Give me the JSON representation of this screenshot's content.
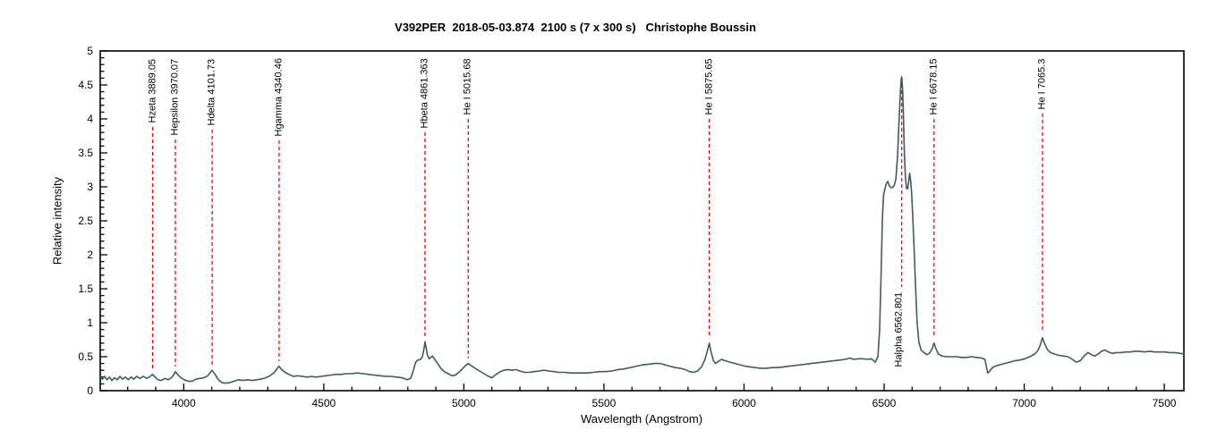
{
  "title": "V392PER  2018-05-03.874  2100 s (7 x 300 s)   Christophe Boussin",
  "colors": {
    "spectrum_line": "#3e5d5b",
    "marker_dash": "#ff0000",
    "axis": "#000000",
    "background": "#ffffff"
  },
  "chart_data": {
    "type": "line",
    "title": "V392PER  2018-05-03.874  2100 s (7 x 300 s)   Christophe Boussin",
    "xlabel": "Wavelength (Angstrom)",
    "ylabel": "Relative intensity",
    "xlim": [
      3702,
      7570
    ],
    "ylim": [
      0,
      5
    ],
    "x_major_ticks": [
      4000,
      4500,
      5000,
      5500,
      6000,
      6500,
      7000,
      7500
    ],
    "x_minor_step": 100,
    "y_major_ticks": [
      0,
      0.5,
      1,
      1.5,
      2,
      2.5,
      3,
      3.5,
      4,
      4.5,
      5
    ],
    "y_minor_step": 0.1,
    "grid": false,
    "legend": "none",
    "series": [
      {
        "name": "spectrum",
        "points": [
          [
            3702,
            0.2
          ],
          [
            3710,
            0.17
          ],
          [
            3718,
            0.21
          ],
          [
            3726,
            0.16
          ],
          [
            3735,
            0.2
          ],
          [
            3744,
            0.15
          ],
          [
            3753,
            0.19
          ],
          [
            3763,
            0.16
          ],
          [
            3772,
            0.21
          ],
          [
            3782,
            0.17
          ],
          [
            3792,
            0.2
          ],
          [
            3802,
            0.16
          ],
          [
            3812,
            0.2
          ],
          [
            3822,
            0.17
          ],
          [
            3832,
            0.21
          ],
          [
            3844,
            0.18
          ],
          [
            3856,
            0.21
          ],
          [
            3868,
            0.18
          ],
          [
            3880,
            0.21
          ],
          [
            3889,
            0.24
          ],
          [
            3898,
            0.2
          ],
          [
            3908,
            0.16
          ],
          [
            3920,
            0.15
          ],
          [
            3932,
            0.18
          ],
          [
            3944,
            0.16
          ],
          [
            3956,
            0.19
          ],
          [
            3964,
            0.23
          ],
          [
            3970,
            0.28
          ],
          [
            3978,
            0.24
          ],
          [
            3990,
            0.19
          ],
          [
            4002,
            0.16
          ],
          [
            4016,
            0.14
          ],
          [
            4030,
            0.14
          ],
          [
            4044,
            0.17
          ],
          [
            4058,
            0.18
          ],
          [
            4072,
            0.19
          ],
          [
            4086,
            0.22
          ],
          [
            4101,
            0.3
          ],
          [
            4112,
            0.24
          ],
          [
            4124,
            0.16
          ],
          [
            4136,
            0.12
          ],
          [
            4150,
            0.11
          ],
          [
            4165,
            0.12
          ],
          [
            4180,
            0.14
          ],
          [
            4196,
            0.16
          ],
          [
            4212,
            0.15
          ],
          [
            4228,
            0.16
          ],
          [
            4244,
            0.15
          ],
          [
            4260,
            0.16
          ],
          [
            4276,
            0.17
          ],
          [
            4292,
            0.19
          ],
          [
            4308,
            0.22
          ],
          [
            4324,
            0.27
          ],
          [
            4340,
            0.36
          ],
          [
            4350,
            0.31
          ],
          [
            4362,
            0.27
          ],
          [
            4376,
            0.24
          ],
          [
            4392,
            0.21
          ],
          [
            4408,
            0.22
          ],
          [
            4424,
            0.21
          ],
          [
            4440,
            0.2
          ],
          [
            4456,
            0.21
          ],
          [
            4472,
            0.2
          ],
          [
            4490,
            0.21
          ],
          [
            4508,
            0.22
          ],
          [
            4526,
            0.23
          ],
          [
            4544,
            0.24
          ],
          [
            4562,
            0.24
          ],
          [
            4580,
            0.25
          ],
          [
            4600,
            0.25
          ],
          [
            4620,
            0.26
          ],
          [
            4640,
            0.25
          ],
          [
            4660,
            0.24
          ],
          [
            4680,
            0.23
          ],
          [
            4700,
            0.22
          ],
          [
            4720,
            0.21
          ],
          [
            4740,
            0.21
          ],
          [
            4760,
            0.2
          ],
          [
            4780,
            0.19
          ],
          [
            4798,
            0.16
          ],
          [
            4810,
            0.18
          ],
          [
            4820,
            0.3
          ],
          [
            4828,
            0.42
          ],
          [
            4836,
            0.45
          ],
          [
            4845,
            0.46
          ],
          [
            4852,
            0.5
          ],
          [
            4858,
            0.62
          ],
          [
            4861,
            0.72
          ],
          [
            4865,
            0.64
          ],
          [
            4870,
            0.52
          ],
          [
            4876,
            0.47
          ],
          [
            4882,
            0.49
          ],
          [
            4888,
            0.51
          ],
          [
            4896,
            0.46
          ],
          [
            4906,
            0.4
          ],
          [
            4918,
            0.33
          ],
          [
            4930,
            0.28
          ],
          [
            4944,
            0.25
          ],
          [
            4958,
            0.22
          ],
          [
            4970,
            0.23
          ],
          [
            4982,
            0.27
          ],
          [
            4994,
            0.32
          ],
          [
            5006,
            0.37
          ],
          [
            5015,
            0.4
          ],
          [
            5026,
            0.37
          ],
          [
            5040,
            0.33
          ],
          [
            5056,
            0.29
          ],
          [
            5072,
            0.25
          ],
          [
            5088,
            0.21
          ],
          [
            5100,
            0.19
          ],
          [
            5112,
            0.23
          ],
          [
            5126,
            0.27
          ],
          [
            5142,
            0.3
          ],
          [
            5158,
            0.31
          ],
          [
            5172,
            0.3
          ],
          [
            5186,
            0.31
          ],
          [
            5200,
            0.29
          ],
          [
            5216,
            0.27
          ],
          [
            5232,
            0.27
          ],
          [
            5250,
            0.28
          ],
          [
            5268,
            0.29
          ],
          [
            5286,
            0.3
          ],
          [
            5304,
            0.29
          ],
          [
            5322,
            0.28
          ],
          [
            5340,
            0.27
          ],
          [
            5360,
            0.27
          ],
          [
            5380,
            0.26
          ],
          [
            5400,
            0.26
          ],
          [
            5420,
            0.26
          ],
          [
            5440,
            0.26
          ],
          [
            5462,
            0.27
          ],
          [
            5484,
            0.28
          ],
          [
            5506,
            0.28
          ],
          [
            5528,
            0.29
          ],
          [
            5550,
            0.31
          ],
          [
            5572,
            0.32
          ],
          [
            5594,
            0.34
          ],
          [
            5616,
            0.36
          ],
          [
            5638,
            0.38
          ],
          [
            5660,
            0.39
          ],
          [
            5680,
            0.4
          ],
          [
            5700,
            0.4
          ],
          [
            5718,
            0.38
          ],
          [
            5736,
            0.36
          ],
          [
            5754,
            0.34
          ],
          [
            5772,
            0.33
          ],
          [
            5790,
            0.31
          ],
          [
            5806,
            0.28
          ],
          [
            5820,
            0.27
          ],
          [
            5834,
            0.29
          ],
          [
            5848,
            0.35
          ],
          [
            5860,
            0.45
          ],
          [
            5869,
            0.58
          ],
          [
            5876,
            0.7
          ],
          [
            5882,
            0.58
          ],
          [
            5890,
            0.45
          ],
          [
            5898,
            0.4
          ],
          [
            5908,
            0.43
          ],
          [
            5920,
            0.46
          ],
          [
            5934,
            0.44
          ],
          [
            5950,
            0.42
          ],
          [
            5968,
            0.4
          ],
          [
            5986,
            0.38
          ],
          [
            6004,
            0.36
          ],
          [
            6022,
            0.35
          ],
          [
            6040,
            0.34
          ],
          [
            6060,
            0.33
          ],
          [
            6080,
            0.33
          ],
          [
            6100,
            0.34
          ],
          [
            6120,
            0.34
          ],
          [
            6140,
            0.35
          ],
          [
            6160,
            0.36
          ],
          [
            6180,
            0.37
          ],
          [
            6200,
            0.38
          ],
          [
            6220,
            0.39
          ],
          [
            6240,
            0.4
          ],
          [
            6260,
            0.41
          ],
          [
            6280,
            0.42
          ],
          [
            6300,
            0.43
          ],
          [
            6320,
            0.44
          ],
          [
            6340,
            0.45
          ],
          [
            6360,
            0.46
          ],
          [
            6378,
            0.48
          ],
          [
            6392,
            0.46
          ],
          [
            6408,
            0.47
          ],
          [
            6424,
            0.47
          ],
          [
            6440,
            0.46
          ],
          [
            6455,
            0.47
          ],
          [
            6468,
            0.42
          ],
          [
            6478,
            0.5
          ],
          [
            6484,
            0.9
          ],
          [
            6489,
            1.7
          ],
          [
            6494,
            2.55
          ],
          [
            6498,
            2.88
          ],
          [
            6503,
            2.97
          ],
          [
            6508,
            3.05
          ],
          [
            6513,
            3.08
          ],
          [
            6518,
            3.02
          ],
          [
            6524,
            2.99
          ],
          [
            6530,
            2.99
          ],
          [
            6536,
            3.02
          ],
          [
            6542,
            3.12
          ],
          [
            6548,
            3.45
          ],
          [
            6553,
            3.95
          ],
          [
            6558,
            4.4
          ],
          [
            6561,
            4.58
          ],
          [
            6563,
            4.62
          ],
          [
            6566,
            4.42
          ],
          [
            6569,
            4.05
          ],
          [
            6572,
            3.55
          ],
          [
            6576,
            3.15
          ],
          [
            6580,
            2.98
          ],
          [
            6584,
            2.97
          ],
          [
            6588,
            3.1
          ],
          [
            6591,
            3.2
          ],
          [
            6594,
            3.12
          ],
          [
            6598,
            2.92
          ],
          [
            6602,
            2.6
          ],
          [
            6607,
            2.1
          ],
          [
            6612,
            1.55
          ],
          [
            6618,
            1.0
          ],
          [
            6624,
            0.72
          ],
          [
            6632,
            0.6
          ],
          [
            6642,
            0.56
          ],
          [
            6652,
            0.53
          ],
          [
            6662,
            0.55
          ],
          [
            6671,
            0.61
          ],
          [
            6678,
            0.7
          ],
          [
            6685,
            0.62
          ],
          [
            6694,
            0.54
          ],
          [
            6706,
            0.51
          ],
          [
            6722,
            0.5
          ],
          [
            6740,
            0.5
          ],
          [
            6758,
            0.5
          ],
          [
            6776,
            0.49
          ],
          [
            6794,
            0.49
          ],
          [
            6812,
            0.5
          ],
          [
            6830,
            0.49
          ],
          [
            6848,
            0.48
          ],
          [
            6860,
            0.46
          ],
          [
            6866,
            0.33
          ],
          [
            6870,
            0.26
          ],
          [
            6876,
            0.28
          ],
          [
            6884,
            0.33
          ],
          [
            6896,
            0.36
          ],
          [
            6912,
            0.38
          ],
          [
            6930,
            0.4
          ],
          [
            6948,
            0.42
          ],
          [
            6966,
            0.44
          ],
          [
            6984,
            0.45
          ],
          [
            7002,
            0.47
          ],
          [
            7020,
            0.5
          ],
          [
            7038,
            0.54
          ],
          [
            7050,
            0.6
          ],
          [
            7058,
            0.68
          ],
          [
            7065,
            0.78
          ],
          [
            7072,
            0.7
          ],
          [
            7082,
            0.61
          ],
          [
            7094,
            0.56
          ],
          [
            7108,
            0.54
          ],
          [
            7124,
            0.52
          ],
          [
            7140,
            0.51
          ],
          [
            7156,
            0.5
          ],
          [
            7172,
            0.46
          ],
          [
            7186,
            0.42
          ],
          [
            7200,
            0.44
          ],
          [
            7214,
            0.51
          ],
          [
            7228,
            0.56
          ],
          [
            7240,
            0.53
          ],
          [
            7252,
            0.51
          ],
          [
            7264,
            0.54
          ],
          [
            7276,
            0.58
          ],
          [
            7288,
            0.6
          ],
          [
            7300,
            0.57
          ],
          [
            7314,
            0.55
          ],
          [
            7330,
            0.56
          ],
          [
            7346,
            0.56
          ],
          [
            7362,
            0.57
          ],
          [
            7378,
            0.57
          ],
          [
            7394,
            0.58
          ],
          [
            7412,
            0.58
          ],
          [
            7430,
            0.57
          ],
          [
            7448,
            0.58
          ],
          [
            7466,
            0.57
          ],
          [
            7484,
            0.57
          ],
          [
            7502,
            0.57
          ],
          [
            7520,
            0.56
          ],
          [
            7538,
            0.56
          ],
          [
            7556,
            0.55
          ],
          [
            7570,
            0.54
          ]
        ]
      }
    ],
    "annotations": [
      {
        "label": "Hzeta 3889.05",
        "wavelength": 3889.05,
        "anchor": "top"
      },
      {
        "label": "Hepsilon 3970.07",
        "wavelength": 3970.07,
        "anchor": "top"
      },
      {
        "label": "Hdelta 4101.73",
        "wavelength": 4101.73,
        "anchor": "top"
      },
      {
        "label": "Hgamma 4340.46",
        "wavelength": 4340.46,
        "anchor": "top"
      },
      {
        "label": "Hbeta 4861.363",
        "wavelength": 4861.363,
        "anchor": "top"
      },
      {
        "label": "He I 5015.68",
        "wavelength": 5015.68,
        "anchor": "top"
      },
      {
        "label": "He I 5875.65",
        "wavelength": 5875.65,
        "anchor": "top"
      },
      {
        "label": "Halpha 6562.801",
        "wavelength": 6562.801,
        "anchor": "bottom"
      },
      {
        "label": "He I 6678.15",
        "wavelength": 6678.15,
        "anchor": "top"
      },
      {
        "label": "He I 7065.3",
        "wavelength": 7065.3,
        "anchor": "top"
      }
    ]
  }
}
